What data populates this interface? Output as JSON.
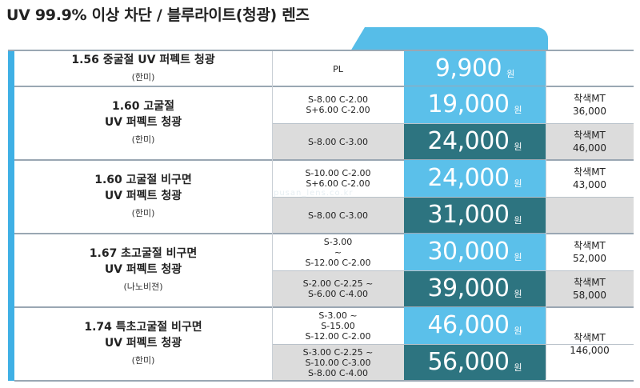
{
  "title": "UV 99.9% 이상 차단 / 블루라이트(청광) 렌즈",
  "watermark": "pusan_lens.co.kr",
  "currency": "원",
  "colors": {
    "accent": "#3fb0e5",
    "price_light": "#5bc0ea",
    "price_dark": "#2d7480",
    "spec_gray": "#dcdcdc"
  },
  "rows": [
    {
      "name": [
        "1.56 중굴절 UV 퍼펙트 청광"
      ],
      "maker": "(한미)",
      "options": [
        {
          "spec": [
            "PL"
          ],
          "price": "9,900",
          "extra": []
        }
      ]
    },
    {
      "name": [
        "1.60 고굴절",
        "UV 퍼펙트 청광"
      ],
      "maker": "(한미)",
      "options": [
        {
          "spec": [
            "S-8.00 C-2.00",
            "S+6.00 C-2.00"
          ],
          "price": "19,000",
          "extra": [
            "착색MT",
            "36,000"
          ]
        },
        {
          "spec": [
            "S-8.00 C-3.00"
          ],
          "price": "24,000",
          "extra": [
            "착색MT",
            "46,000"
          ]
        }
      ]
    },
    {
      "name": [
        "1.60 고굴절 비구면",
        "UV 퍼펙트 청광"
      ],
      "maker": "(한미)",
      "options": [
        {
          "spec": [
            "S-10.00 C-2.00",
            "S+6.00 C-2.00"
          ],
          "price": "24,000",
          "extra": [
            "착색MT",
            "43,000"
          ]
        },
        {
          "spec": [
            "S-8.00 C-3.00"
          ],
          "price": "31,000",
          "extra": []
        }
      ]
    },
    {
      "name": [
        "1.67 초고굴절 비구면",
        "UV 퍼펙트 청광"
      ],
      "maker": "(나노비젼)",
      "options": [
        {
          "spec": [
            "S-3.00",
            "~",
            "S-12.00 C-2.00"
          ],
          "price": "30,000",
          "extra": [
            "착색MT",
            "52,000"
          ]
        },
        {
          "spec": [
            "S-2.00 C-2.25 ~",
            "S-6.00 C-4.00"
          ],
          "price": "39,000",
          "extra": [
            "착색MT",
            "58,000"
          ]
        }
      ]
    },
    {
      "name": [
        "1.74 특초고굴절 비구면",
        "UV 퍼펙트 청광"
      ],
      "maker": "(한미)",
      "options": [
        {
          "spec": [
            "S-3.00 ~",
            "S-15.00",
            "S-12.00 C-2.00"
          ],
          "price": "46,000"
        },
        {
          "spec": [
            "S-3.00 C-2.25 ~",
            "S-10.00 C-3.00",
            "S-8.00 C-4.00"
          ],
          "price": "56,000"
        }
      ],
      "extra_merged": [
        "착색MT",
        "146,000"
      ]
    }
  ]
}
